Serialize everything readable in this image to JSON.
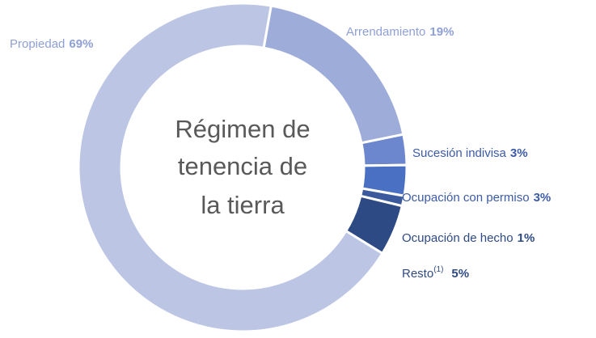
{
  "chart_data": {
    "type": "donut",
    "title_lines": [
      "Régimen de",
      "tenencia de",
      "la tierra"
    ],
    "categories": [
      "Arrendamiento",
      "Sucesión indivisa",
      "Ocupación con permiso",
      "Ocupación de hecho",
      "Resto",
      "Propiedad"
    ],
    "footnote_marker": "(1)",
    "values": [
      19,
      3,
      3,
      1,
      5,
      69
    ],
    "value_labels": [
      "19%",
      "3%",
      "3%",
      "1%",
      "5%",
      "69%"
    ],
    "colors": [
      "#9eacd9",
      "#6d87cf",
      "#4a70c4",
      "#3b5a9e",
      "#2e4a85",
      "#bcc6e4"
    ]
  }
}
